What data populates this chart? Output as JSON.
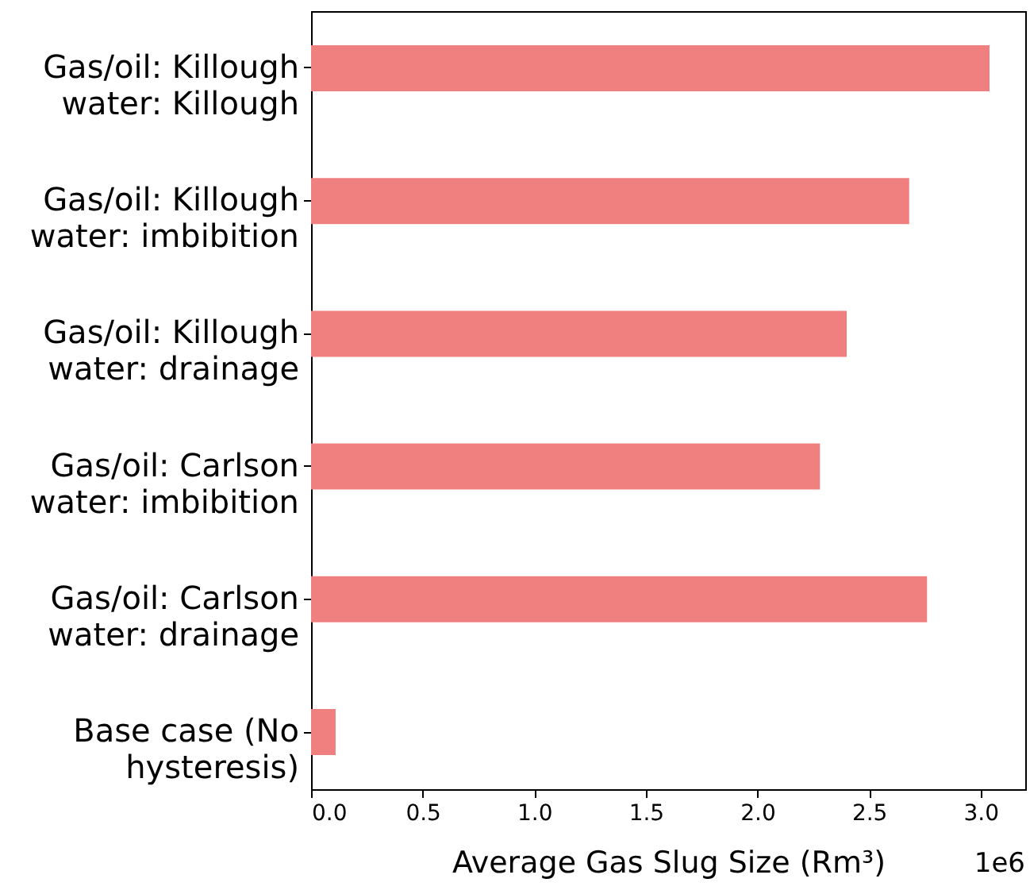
{
  "chart_data": {
    "type": "bar",
    "orientation": "horizontal",
    "categories": [
      "Gas/oil: Killough\nwater: Killough",
      "Gas/oil: Killough\nwater: imbibition",
      "Gas/oil: Killough\nwater: drainage",
      "Gas/oil: Carlson\nwater: imbibition",
      "Gas/oil: Carlson\nwater: drainage",
      "Base case (No\nhysteresis)"
    ],
    "values": [
      3.04,
      2.68,
      2.4,
      2.28,
      2.76,
      0.11
    ],
    "color": "#f08080",
    "xlabel": "Average Gas Slug Size (Rm³)",
    "xlim": [
      0,
      3.2
    ],
    "xticks": [
      {
        "value": 0,
        "label": "0.0"
      },
      0.5,
      {
        "value": 1,
        "label": "1.0"
      },
      1.5,
      {
        "value": 2,
        "label": "2.0"
      },
      2.5,
      {
        "value": 3,
        "label": "3.0"
      }
    ],
    "annotations": [
      "1e6"
    ],
    "grid": false
  }
}
